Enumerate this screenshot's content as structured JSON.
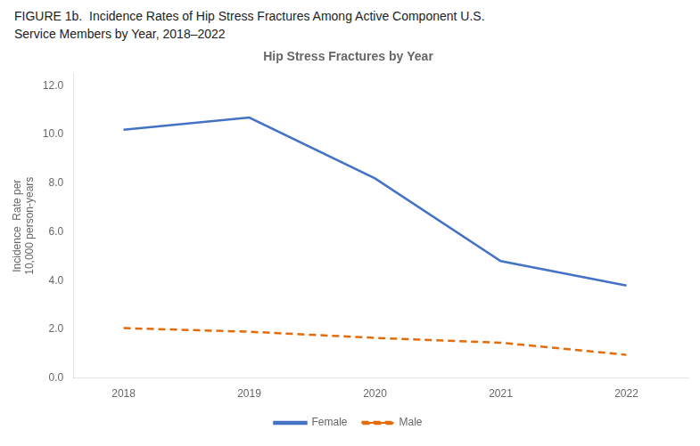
{
  "chart_data": {
    "type": "line",
    "title": "Hip Stress Fractures by Year",
    "subtitle": [
      "FIGURE 1b.  Incidence Rates of Hip Stress Fractures Among Active Component U.S.",
      "Service Members by Year, 2018–2022"
    ],
    "ylabel": [
      "Incidence  Rate per",
      "10,000 person-years"
    ],
    "x": [
      2018,
      2019,
      2020,
      2021,
      2022
    ],
    "series": [
      {
        "name": "Female",
        "color": "#4472C4",
        "line_style": "solid",
        "marker": "none",
        "values": [
          10.2,
          10.7,
          8.2,
          4.8,
          3.8
        ]
      },
      {
        "name": "Male",
        "color": "#E36C09",
        "line_style": "dashed",
        "marker": "none",
        "values": [
          2.05,
          1.9,
          1.65,
          1.45,
          0.95
        ]
      }
    ],
    "xlim": [
      2017.6,
      2022.5
    ],
    "xticks": [
      2018,
      2019,
      2020,
      2021,
      2022
    ],
    "ylim": [
      0,
      12.5
    ],
    "yticks": [
      {
        "value": 0.0,
        "label": "0.0"
      },
      {
        "value": 2.0,
        "label": "2.0"
      },
      {
        "value": 4.0,
        "label": "4.0"
      },
      {
        "value": 6.0,
        "label": "6.0"
      },
      {
        "value": 8.0,
        "label": "8.0"
      },
      {
        "value": 10.0,
        "label": "10.0"
      },
      {
        "value": 12.0,
        "label": "12.0"
      }
    ],
    "grid": false,
    "legend": "bottom"
  }
}
